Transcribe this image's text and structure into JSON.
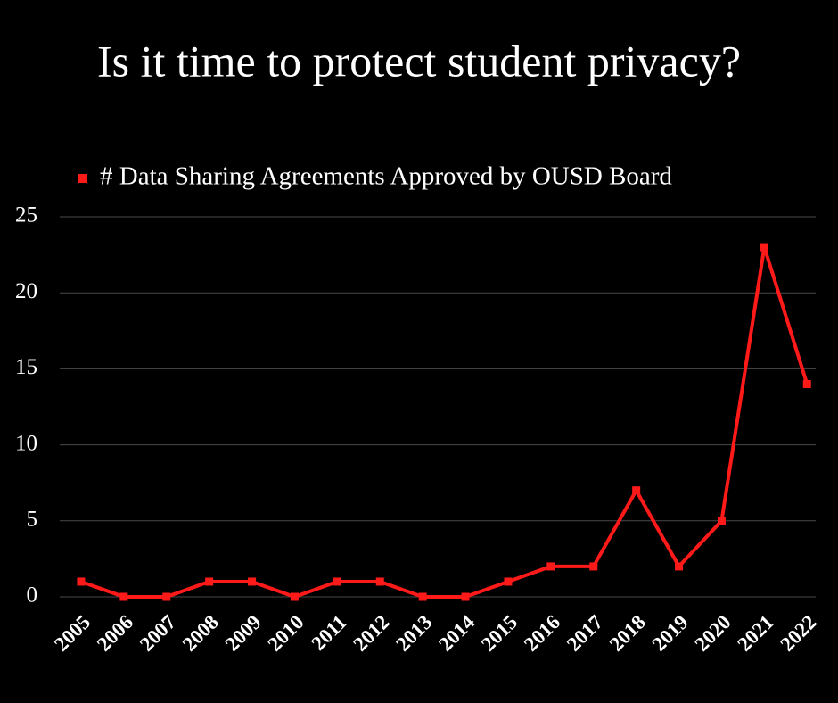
{
  "chart_data": {
    "type": "line",
    "title": "Is it time to protect student privacy?",
    "categories": [
      "2005",
      "2006",
      "2007",
      "2008",
      "2009",
      "2010",
      "2011",
      "2012",
      "2013",
      "2014",
      "2015",
      "2016",
      "2017",
      "2018",
      "2019",
      "2020",
      "2021",
      "2022"
    ],
    "series": [
      {
        "name": "# Data Sharing Agreements Approved by OUSD Board",
        "color": "#ff1a1a",
        "values": [
          1,
          0,
          0,
          1,
          1,
          0,
          1,
          1,
          0,
          0,
          1,
          2,
          2,
          7,
          2,
          5,
          23,
          14
        ]
      }
    ],
    "ylim": [
      0,
      25
    ],
    "yticks": [
      0,
      5,
      10,
      15,
      20,
      25
    ],
    "grid": true
  }
}
